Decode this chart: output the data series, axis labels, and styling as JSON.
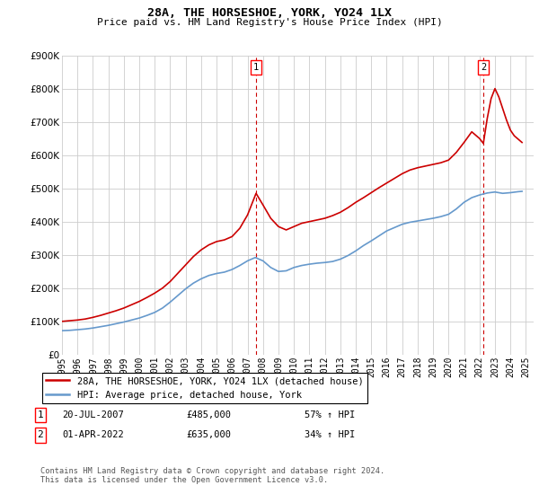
{
  "title": "28A, THE HORSESHOE, YORK, YO24 1LX",
  "subtitle": "Price paid vs. HM Land Registry's House Price Index (HPI)",
  "ylim": [
    0,
    900000
  ],
  "xlim_start": 1995.0,
  "xlim_end": 2025.5,
  "red_line_color": "#cc0000",
  "blue_line_color": "#6699cc",
  "dashed_line_color": "#cc0000",
  "grid_color": "#cccccc",
  "legend_label_red": "28A, THE HORSESHOE, YORK, YO24 1LX (detached house)",
  "legend_label_blue": "HPI: Average price, detached house, York",
  "marker1_label": "1",
  "marker1_date": "20-JUL-2007",
  "marker1_price": "£485,000",
  "marker1_hpi": "57% ↑ HPI",
  "marker1_x": 2007.55,
  "marker2_label": "2",
  "marker2_date": "01-APR-2022",
  "marker2_price": "£635,000",
  "marker2_hpi": "34% ↑ HPI",
  "marker2_x": 2022.25,
  "footnote": "Contains HM Land Registry data © Crown copyright and database right 2024.\nThis data is licensed under the Open Government Licence v3.0.",
  "red_data": [
    [
      1995.0,
      100000
    ],
    [
      1995.5,
      102000
    ],
    [
      1996.0,
      104000
    ],
    [
      1996.5,
      107000
    ],
    [
      1997.0,
      112000
    ],
    [
      1997.5,
      118000
    ],
    [
      1998.0,
      125000
    ],
    [
      1998.5,
      132000
    ],
    [
      1999.0,
      140000
    ],
    [
      1999.5,
      150000
    ],
    [
      2000.0,
      160000
    ],
    [
      2000.5,
      172000
    ],
    [
      2001.0,
      185000
    ],
    [
      2001.5,
      200000
    ],
    [
      2002.0,
      220000
    ],
    [
      2002.5,
      245000
    ],
    [
      2003.0,
      270000
    ],
    [
      2003.5,
      295000
    ],
    [
      2004.0,
      315000
    ],
    [
      2004.5,
      330000
    ],
    [
      2005.0,
      340000
    ],
    [
      2005.5,
      345000
    ],
    [
      2006.0,
      355000
    ],
    [
      2006.5,
      380000
    ],
    [
      2007.0,
      420000
    ],
    [
      2007.55,
      485000
    ],
    [
      2008.0,
      450000
    ],
    [
      2008.5,
      410000
    ],
    [
      2009.0,
      385000
    ],
    [
      2009.5,
      375000
    ],
    [
      2010.0,
      385000
    ],
    [
      2010.5,
      395000
    ],
    [
      2011.0,
      400000
    ],
    [
      2011.5,
      405000
    ],
    [
      2012.0,
      410000
    ],
    [
      2012.5,
      418000
    ],
    [
      2013.0,
      428000
    ],
    [
      2013.5,
      442000
    ],
    [
      2014.0,
      458000
    ],
    [
      2014.5,
      472000
    ],
    [
      2015.0,
      487000
    ],
    [
      2015.5,
      502000
    ],
    [
      2016.0,
      516000
    ],
    [
      2016.5,
      530000
    ],
    [
      2017.0,
      544000
    ],
    [
      2017.5,
      555000
    ],
    [
      2018.0,
      562000
    ],
    [
      2018.5,
      567000
    ],
    [
      2019.0,
      572000
    ],
    [
      2019.5,
      577000
    ],
    [
      2020.0,
      585000
    ],
    [
      2020.5,
      608000
    ],
    [
      2021.0,
      638000
    ],
    [
      2021.5,
      670000
    ],
    [
      2022.0,
      650000
    ],
    [
      2022.25,
      635000
    ],
    [
      2022.5,
      710000
    ],
    [
      2022.75,
      770000
    ],
    [
      2023.0,
      800000
    ],
    [
      2023.25,
      775000
    ],
    [
      2023.5,
      740000
    ],
    [
      2023.75,
      705000
    ],
    [
      2024.0,
      675000
    ],
    [
      2024.25,
      658000
    ],
    [
      2024.5,
      648000
    ],
    [
      2024.75,
      638000
    ]
  ],
  "blue_data": [
    [
      1995.0,
      72000
    ],
    [
      1995.5,
      73000
    ],
    [
      1996.0,
      75000
    ],
    [
      1996.5,
      77000
    ],
    [
      1997.0,
      80000
    ],
    [
      1997.5,
      84000
    ],
    [
      1998.0,
      88000
    ],
    [
      1998.5,
      93000
    ],
    [
      1999.0,
      98000
    ],
    [
      1999.5,
      104000
    ],
    [
      2000.0,
      110000
    ],
    [
      2000.5,
      118000
    ],
    [
      2001.0,
      127000
    ],
    [
      2001.5,
      140000
    ],
    [
      2002.0,
      158000
    ],
    [
      2002.5,
      178000
    ],
    [
      2003.0,
      198000
    ],
    [
      2003.5,
      215000
    ],
    [
      2004.0,
      228000
    ],
    [
      2004.5,
      238000
    ],
    [
      2005.0,
      244000
    ],
    [
      2005.5,
      248000
    ],
    [
      2006.0,
      256000
    ],
    [
      2006.5,
      268000
    ],
    [
      2007.0,
      282000
    ],
    [
      2007.5,
      292000
    ],
    [
      2008.0,
      282000
    ],
    [
      2008.5,
      262000
    ],
    [
      2009.0,
      250000
    ],
    [
      2009.5,
      252000
    ],
    [
      2010.0,
      262000
    ],
    [
      2010.5,
      268000
    ],
    [
      2011.0,
      272000
    ],
    [
      2011.5,
      275000
    ],
    [
      2012.0,
      277000
    ],
    [
      2012.5,
      280000
    ],
    [
      2013.0,
      287000
    ],
    [
      2013.5,
      298000
    ],
    [
      2014.0,
      312000
    ],
    [
      2014.5,
      328000
    ],
    [
      2015.0,
      342000
    ],
    [
      2015.5,
      357000
    ],
    [
      2016.0,
      372000
    ],
    [
      2016.5,
      382000
    ],
    [
      2017.0,
      392000
    ],
    [
      2017.5,
      398000
    ],
    [
      2018.0,
      402000
    ],
    [
      2018.5,
      406000
    ],
    [
      2019.0,
      410000
    ],
    [
      2019.5,
      415000
    ],
    [
      2020.0,
      422000
    ],
    [
      2020.5,
      438000
    ],
    [
      2021.0,
      458000
    ],
    [
      2021.5,
      472000
    ],
    [
      2022.0,
      480000
    ],
    [
      2022.5,
      486000
    ],
    [
      2023.0,
      489000
    ],
    [
      2023.5,
      485000
    ],
    [
      2024.0,
      487000
    ],
    [
      2024.5,
      490000
    ],
    [
      2024.75,
      491000
    ]
  ]
}
